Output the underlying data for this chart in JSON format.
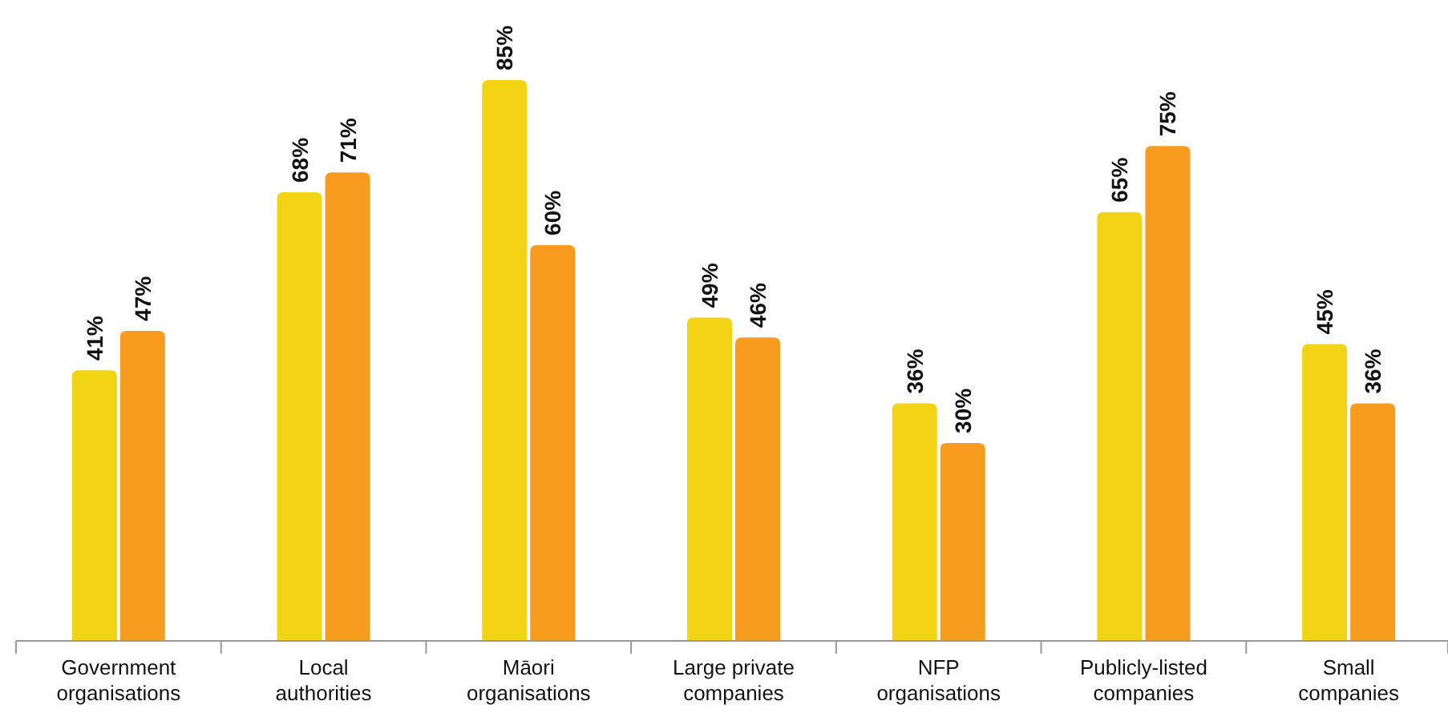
{
  "chart_data": {
    "type": "bar",
    "categories": [
      "Government organisations",
      "Local authorities",
      "Māori organisations",
      "Large private companies",
      "NFP organisations",
      "Publicly-listed companies",
      "Small companies"
    ],
    "series": [
      {
        "color": "#f2d414",
        "values": [
          41,
          68,
          85,
          49,
          36,
          65,
          45
        ],
        "value_labels": [
          "41%",
          "68%",
          "85%",
          "49%",
          "36%",
          "65%",
          "45%"
        ]
      },
      {
        "color": "#f79c1f",
        "values": [
          47,
          71,
          60,
          46,
          30,
          75,
          36
        ],
        "value_labels": [
          "47%",
          "71%",
          "60%",
          "46%",
          "30%",
          "75%",
          "36%"
        ]
      }
    ]
  }
}
